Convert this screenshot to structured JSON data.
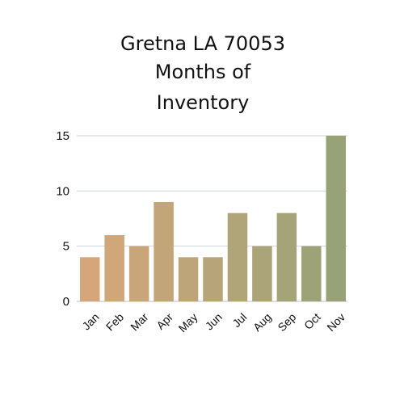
{
  "chart_data": {
    "type": "bar",
    "title_lines": [
      "Gretna LA 70053",
      "Months of",
      "Inventory"
    ],
    "categories": [
      "Jan",
      "Feb",
      "Mar",
      "Apr",
      "May",
      "Jun",
      "Jul",
      "Aug",
      "Sep",
      "Oct",
      "Nov"
    ],
    "values": [
      4,
      6,
      5,
      9,
      4,
      4,
      8,
      5,
      8,
      5,
      15
    ],
    "ylim": [
      0,
      15
    ],
    "yticks": [
      0,
      5,
      10,
      15
    ],
    "grid": true,
    "bar_color_start": "#d6a67b",
    "bar_color_end": "#97a377",
    "xlabel": "",
    "ylabel": ""
  }
}
